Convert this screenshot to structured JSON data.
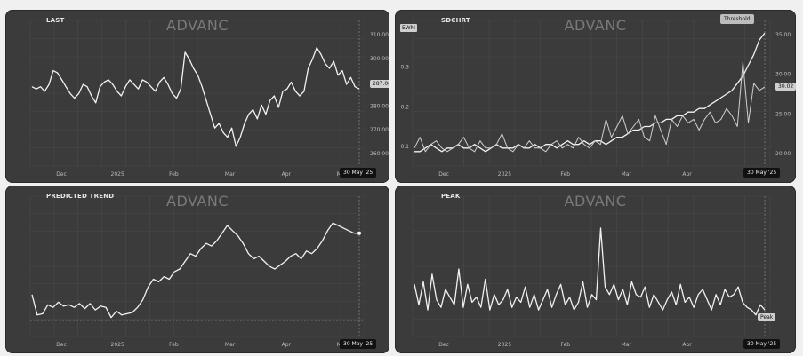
{
  "chart_data": [
    {
      "id": "last",
      "type": "line",
      "title": "LAST",
      "watermark": "ADVANC",
      "x_ticks": [
        "Dec",
        "2025",
        "Feb",
        "Mar",
        "Apr",
        "May"
      ],
      "end_date_label": "30 May '25",
      "y_ticks": [
        "310.00",
        "300.00",
        "290.00",
        "280.00",
        "270.00",
        "260.00"
      ],
      "ylim": [
        255,
        313
      ],
      "last_value_label": "287.00",
      "values": [
        288,
        287,
        288,
        286,
        289,
        295,
        294,
        291,
        288,
        285,
        283,
        285,
        289,
        288,
        284,
        281,
        288,
        290,
        291,
        289,
        286,
        284,
        288,
        291,
        289,
        287,
        291,
        290,
        288,
        286,
        290,
        292,
        289,
        285,
        283,
        287,
        303,
        300,
        296,
        293,
        288,
        282,
        276,
        270,
        272,
        268,
        266,
        270,
        262,
        266,
        272,
        276,
        278,
        274,
        280,
        276,
        282,
        284,
        279,
        286,
        287,
        290,
        286,
        284,
        286,
        296,
        300,
        305,
        302,
        298,
        296,
        299,
        293,
        295,
        289,
        292,
        288,
        287
      ]
    },
    {
      "id": "sdchart",
      "type": "line",
      "title": "SDCHRT",
      "watermark": "ADVANC",
      "button_label": "Threshold",
      "left_badge": "EWM",
      "x_ticks": [
        "Dec",
        "2025",
        "Feb",
        "Mar",
        "Apr",
        "May"
      ],
      "end_date_label": "30 May '25",
      "y_ticks_left": [
        "0.4",
        "0.3",
        "0.2",
        "0.1"
      ],
      "y_ticks_right": [
        "35.00",
        "30.00",
        "25.00",
        "20.00"
      ],
      "ylim": [
        0.08,
        0.45
      ],
      "last_value_label": "30.02",
      "series": [
        {
          "values": [
            0.11,
            0.11,
            0.12,
            0.13,
            0.12,
            0.11,
            0.12,
            0.12,
            0.13,
            0.12,
            0.12,
            0.13,
            0.12,
            0.11,
            0.12,
            0.13,
            0.12,
            0.12,
            0.12,
            0.13,
            0.12,
            0.12,
            0.13,
            0.12,
            0.13,
            0.13,
            0.12,
            0.13,
            0.14,
            0.13,
            0.13,
            0.14,
            0.13,
            0.14,
            0.14,
            0.13,
            0.14,
            0.15,
            0.15,
            0.16,
            0.17,
            0.17,
            0.18,
            0.18,
            0.19,
            0.19,
            0.2,
            0.2,
            0.21,
            0.21,
            0.22,
            0.22,
            0.23,
            0.23,
            0.24,
            0.25,
            0.26,
            0.27,
            0.28,
            0.3,
            0.32,
            0.35,
            0.38,
            0.42,
            0.44
          ]
        },
        {
          "values": [
            0.12,
            0.15,
            0.11,
            0.13,
            0.14,
            0.12,
            0.11,
            0.12,
            0.13,
            0.15,
            0.12,
            0.11,
            0.14,
            0.12,
            0.12,
            0.13,
            0.16,
            0.12,
            0.11,
            0.13,
            0.12,
            0.14,
            0.12,
            0.12,
            0.11,
            0.13,
            0.14,
            0.12,
            0.13,
            0.12,
            0.15,
            0.13,
            0.12,
            0.14,
            0.13,
            0.2,
            0.15,
            0.18,
            0.21,
            0.16,
            0.18,
            0.2,
            0.15,
            0.14,
            0.21,
            0.17,
            0.13,
            0.2,
            0.18,
            0.21,
            0.19,
            0.2,
            0.17,
            0.2,
            0.22,
            0.19,
            0.2,
            0.23,
            0.21,
            0.18,
            0.36,
            0.19,
            0.3,
            0.28,
            0.29
          ]
        }
      ]
    },
    {
      "id": "predicted",
      "type": "line",
      "title": "PREDICTED TREND",
      "watermark": "ADVANC",
      "x_ticks": [
        "Dec",
        "2025",
        "Feb",
        "Mar",
        "Apr",
        "May"
      ],
      "end_date_label": "30 May '25",
      "ylim": [
        0,
        100
      ],
      "values": [
        30,
        14,
        15,
        22,
        20,
        24,
        21,
        22,
        20,
        23,
        19,
        23,
        18,
        21,
        20,
        12,
        17,
        14,
        15,
        16,
        20,
        26,
        36,
        42,
        40,
        44,
        42,
        48,
        50,
        56,
        62,
        60,
        66,
        70,
        68,
        72,
        78,
        84,
        80,
        76,
        70,
        62,
        58,
        60,
        56,
        52,
        50,
        53,
        56,
        60,
        62,
        58,
        64,
        62,
        66,
        72,
        80,
        86,
        84,
        82,
        80,
        78,
        78
      ]
    },
    {
      "id": "peak",
      "type": "line",
      "title": "PEAK",
      "watermark": "ADVANC",
      "x_ticks": [
        "Dec",
        "2025",
        "Feb",
        "Mar",
        "Apr",
        "May"
      ],
      "end_date_label": "30 May '25",
      "last_value_label": "Peak",
      "ylim": [
        0,
        100
      ],
      "values": [
        38,
        22,
        40,
        18,
        46,
        26,
        20,
        34,
        28,
        22,
        50,
        20,
        38,
        24,
        28,
        20,
        42,
        18,
        30,
        22,
        26,
        34,
        20,
        28,
        24,
        36,
        20,
        30,
        18,
        26,
        34,
        20,
        30,
        38,
        22,
        28,
        18,
        24,
        40,
        20,
        30,
        26,
        82,
        36,
        30,
        38,
        26,
        34,
        22,
        40,
        30,
        28,
        36,
        20,
        30,
        24,
        18,
        26,
        32,
        22,
        38,
        24,
        28,
        20,
        30,
        34,
        26,
        18,
        30,
        22,
        34,
        28,
        30,
        36,
        24,
        20,
        18,
        14,
        22,
        18
      ]
    }
  ]
}
